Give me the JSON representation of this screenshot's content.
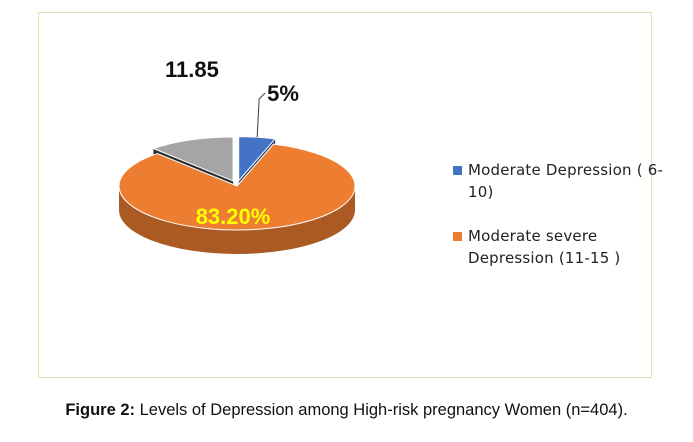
{
  "caption": {
    "prefix": "Figure 2:",
    "text": " Levels of Depression among High-risk pregnancy Women (n=404)."
  },
  "chart_data": {
    "type": "pie",
    "title": "",
    "style": "3d-exploded",
    "slices": [
      {
        "name": "Moderate Depression ( 6-10)",
        "value": 5,
        "label": "5%",
        "color": "#4472c4"
      },
      {
        "name": "Moderate severe Depression (11-15 )",
        "value": 83.2,
        "label": "83.20%",
        "color": "#ed7d31",
        "label_color": "#ffff00"
      },
      {
        "name": "",
        "value": 11.8,
        "label": "11.85",
        "color": "#a5a5a5"
      }
    ],
    "legend": {
      "position": "right",
      "entries": [
        {
          "label": "Moderate Depression ( 6-10)",
          "color": "#4472c4"
        },
        {
          "label": "Moderate severe Depression (11-15 )",
          "color": "#ed7d31"
        }
      ]
    }
  }
}
